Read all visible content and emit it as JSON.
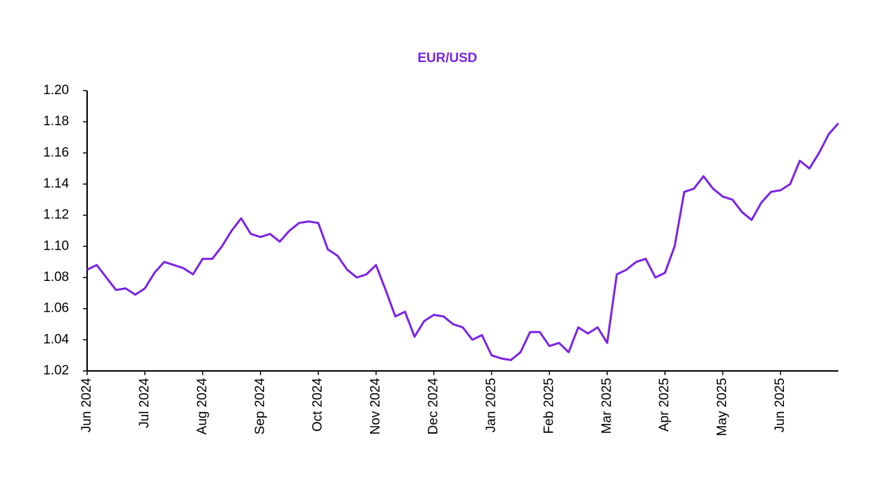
{
  "chart_data": {
    "type": "line",
    "title": "EUR/USD",
    "color": "#7b22e6",
    "categories": [
      "Jun 2024",
      null,
      null,
      null,
      null,
      null,
      "Jul 2024",
      null,
      null,
      null,
      null,
      null,
      "Aug 2024",
      null,
      null,
      null,
      null,
      null,
      "Sep 2024",
      null,
      null,
      null,
      null,
      null,
      "Oct 2024",
      null,
      null,
      null,
      null,
      null,
      "Nov 2024",
      null,
      null,
      null,
      null,
      null,
      "Dec 2024",
      null,
      null,
      null,
      null,
      null,
      "Jan 2025",
      null,
      null,
      null,
      null,
      null,
      "Feb 2025",
      null,
      null,
      null,
      null,
      null,
      "Mar 2025",
      null,
      null,
      null,
      null,
      null,
      "Apr 2025",
      null,
      null,
      null,
      null,
      null,
      "May 2025",
      null,
      null,
      null,
      null,
      null,
      "Jun 2025",
      null,
      null,
      null,
      null,
      null,
      null
    ],
    "values": [
      1.085,
      1.088,
      1.08,
      1.072,
      1.073,
      1.069,
      1.073,
      1.083,
      1.09,
      1.088,
      1.086,
      1.082,
      1.092,
      1.092,
      1.1,
      1.11,
      1.118,
      1.108,
      1.106,
      1.108,
      1.103,
      1.11,
      1.115,
      1.116,
      1.115,
      1.098,
      1.094,
      1.085,
      1.08,
      1.082,
      1.088,
      1.072,
      1.055,
      1.058,
      1.042,
      1.052,
      1.056,
      1.055,
      1.05,
      1.048,
      1.04,
      1.043,
      1.03,
      1.028,
      1.027,
      1.032,
      1.045,
      1.045,
      1.036,
      1.038,
      1.032,
      1.048,
      1.044,
      1.048,
      1.038,
      1.082,
      1.085,
      1.09,
      1.092,
      1.08,
      1.083,
      1.1,
      1.135,
      1.137,
      1.145,
      1.137,
      1.132,
      1.13,
      1.122,
      1.117,
      1.128,
      1.135,
      1.136,
      1.14,
      1.155,
      1.15,
      1.16,
      1.172,
      1.179
    ],
    "ylim": [
      1.02,
      1.2
    ],
    "yticks": [
      1.02,
      1.04,
      1.06,
      1.08,
      {
        "value": 1.1,
        "label": "1.10"
      },
      1.12,
      1.14,
      1.16,
      1.18,
      {
        "value": 1.2,
        "label": "1.20"
      }
    ],
    "grid": false
  }
}
